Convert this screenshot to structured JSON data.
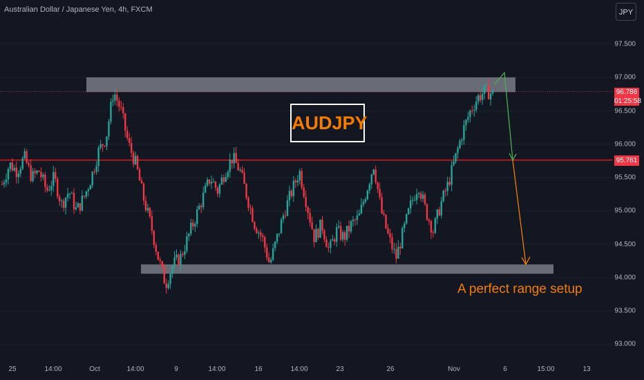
{
  "header": {
    "symbol_title": "Australian Dollar / Japanese Yen, 4h, FXCM",
    "currency_button": "JPY"
  },
  "price_tag": {
    "price": "96.786",
    "countdown": "01:25:58"
  },
  "level_tag": {
    "price": "95.761"
  },
  "ticker_label": "AUDJPY",
  "annotation": "A perfect range setup",
  "colors": {
    "background": "#131722",
    "up": "#26a69a",
    "down": "#f23645",
    "level": "#ff1e1e",
    "zone": "#787b86",
    "orange": "#f57c00",
    "green": "#4caf50"
  },
  "chart_data": {
    "type": "candlestick",
    "ylim": [
      92.8,
      98.0
    ],
    "y_ticks": [
      "97.500",
      "97.000",
      "96.500",
      "96.000",
      "95.500",
      "95.000",
      "94.500",
      "94.000",
      "93.500",
      "93.000"
    ],
    "x_ticks": [
      "25",
      "14:00",
      "Oct",
      "14:00",
      "9",
      "14:00",
      "16",
      "14:00",
      "23",
      "26",
      "Nov",
      "6",
      "15:00",
      "13"
    ],
    "last_price": 96.786,
    "resistance_zone": [
      96.78,
      97.0
    ],
    "support_zone": [
      94.06,
      94.2
    ],
    "horizontal_level": 95.761,
    "projection": {
      "top": 97.07,
      "mid": 95.761,
      "target": 94.2
    },
    "close_path": [
      95.4,
      95.7,
      95.6,
      95.8,
      95.5,
      95.6,
      95.3,
      95.5,
      95.1,
      95.3,
      95.0,
      95.2,
      95.5,
      95.9,
      96.1,
      96.8,
      96.5,
      96.0,
      95.7,
      95.2,
      94.8,
      94.3,
      93.9,
      94.2,
      94.3,
      94.6,
      94.9,
      95.2,
      95.5,
      95.3,
      95.6,
      95.8,
      95.6,
      95.2,
      94.8,
      94.6,
      94.2,
      94.6,
      95.0,
      95.3,
      95.6,
      95.1,
      94.6,
      94.8,
      94.4,
      94.7,
      94.6,
      94.8,
      94.9,
      95.3,
      95.7,
      95.0,
      94.6,
      94.3,
      94.7,
      95.1,
      95.4,
      95.0,
      94.7,
      95.1,
      95.4,
      95.8,
      96.2,
      96.5,
      96.7,
      96.8,
      96.75
    ]
  }
}
